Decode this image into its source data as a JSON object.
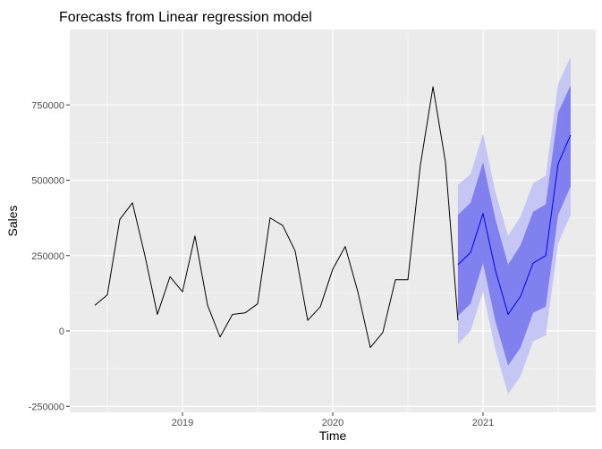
{
  "chart_data": {
    "type": "line",
    "title": "Forecasts from Linear regression model",
    "xlabel": "Time",
    "ylabel": "Sales",
    "xlim": [
      2018.25,
      2021.75
    ],
    "ylim": [
      -270000,
      1000000
    ],
    "x_ticks": [
      2019,
      2020,
      2021
    ],
    "x_tick_labels": [
      "2019",
      "2020",
      "2021"
    ],
    "y_ticks": [
      -250000,
      0,
      250000,
      500000,
      750000
    ],
    "y_tick_labels": [
      "-250000",
      "0",
      "250000",
      "500000",
      "750000"
    ],
    "grid": true,
    "legend": "none",
    "colors": {
      "panel": "#EBEBEB",
      "grid": "#FFFFFF",
      "history": "#000000",
      "forecast": "#0000FF",
      "band95": "#C6C6F5",
      "band80": "#8080EE"
    },
    "history": {
      "x": [
        2018.417,
        2018.5,
        2018.583,
        2018.667,
        2018.75,
        2018.833,
        2018.917,
        2019.0,
        2019.083,
        2019.167,
        2019.25,
        2019.333,
        2019.417,
        2019.5,
        2019.583,
        2019.667,
        2019.75,
        2019.833,
        2019.917,
        2020.0,
        2020.083,
        2020.167,
        2020.25,
        2020.333,
        2020.417,
        2020.5,
        2020.583,
        2020.667,
        2020.75
      ],
      "y": [
        85000,
        120000,
        370000,
        425000,
        250000,
        55000,
        180000,
        130000,
        315000,
        85000,
        -20000,
        55000,
        60000,
        90000,
        375000,
        350000,
        265000,
        35000,
        80000,
        205000,
        280000,
        130000,
        -55000,
        -5000,
        170000,
        170000,
        550000,
        810000,
        560000
      ]
    },
    "history_end": {
      "x": 2020.833,
      "y": 35000
    },
    "forecast": {
      "x": [
        2020.833,
        2020.917,
        2021.0,
        2021.083,
        2021.167,
        2021.25,
        2021.333,
        2021.417,
        2021.5,
        2021.583
      ],
      "mean": [
        220000,
        260000,
        390000,
        200000,
        55000,
        115000,
        225000,
        250000,
        555000,
        650000
      ],
      "lo80": [
        50000,
        90000,
        225000,
        30000,
        -115000,
        -55000,
        60000,
        80000,
        385000,
        480000
      ],
      "hi80": [
        385000,
        425000,
        560000,
        370000,
        220000,
        285000,
        395000,
        420000,
        725000,
        815000
      ],
      "lo95": [
        -45000,
        0,
        130000,
        -65000,
        -210000,
        -150000,
        -35000,
        -15000,
        290000,
        385000
      ],
      "hi95": [
        485000,
        520000,
        655000,
        460000,
        315000,
        380000,
        490000,
        515000,
        820000,
        910000
      ]
    }
  }
}
